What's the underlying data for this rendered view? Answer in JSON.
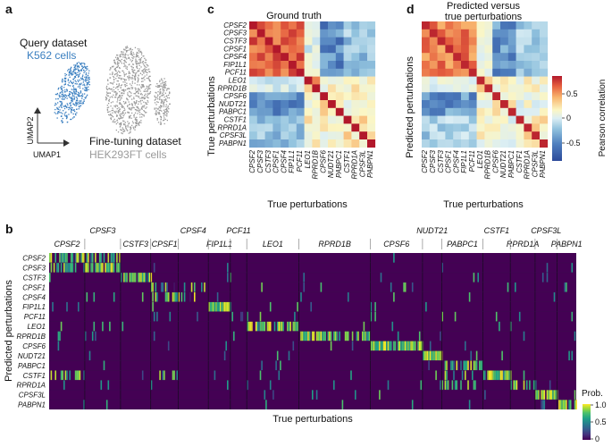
{
  "panels": {
    "a": {
      "label": "a",
      "query_title": "Query dataset",
      "query_subtitle": "K562 cells",
      "finetune_title": "Fine-tuning dataset",
      "finetune_subtitle": "HEK293FT cells",
      "axis_x": "UMAP1",
      "axis_y": "UMAP2"
    },
    "b": {
      "label": "b",
      "ylabel": "Predicted perturbations",
      "xlabel": "True perturbations",
      "colorbar_title": "Prob.",
      "colorbar_ticks": [
        "1.0",
        "0.5",
        "0"
      ]
    },
    "c": {
      "label": "c",
      "title": "Ground truth",
      "ylabel": "True perturbations",
      "xlabel": "True perturbations"
    },
    "d": {
      "label": "d",
      "title_line1": "Predicted versus",
      "title_line2": "true perturbations",
      "ylabel": "Predicted perturbations",
      "xlabel": "True perturbations",
      "colorbar_title": "Pearson correlation",
      "colorbar_ticks": [
        "0.5",
        "0",
        "-0.5"
      ]
    }
  },
  "genes": [
    "CPSF2",
    "CPSF3",
    "CSTF3",
    "CPSF1",
    "CPSF4",
    "FIP1L1",
    "PCF11",
    "LEO1",
    "RPRD1B",
    "CPSF6",
    "NUDT21",
    "PABPC1",
    "CSTF1",
    "RPRD1A",
    "CPSF3L",
    "PABPN1"
  ],
  "chart_data": [
    {
      "type": "heatmap",
      "id": "ground-truth",
      "title": "Ground truth",
      "xlabel": "True perturbations",
      "ylabel": "True perturbations",
      "colorbar_range": [
        -0.8,
        1.0
      ],
      "groups": [
        [
          0,
          6
        ],
        [
          7,
          8
        ],
        [
          9,
          11
        ],
        [
          12,
          15
        ]
      ],
      "block_correlation": [
        [
          0.75,
          0.0,
          -0.5,
          -0.25
        ],
        [
          0.0,
          0.5,
          0.2,
          0.2
        ],
        [
          -0.5,
          0.2,
          0.3,
          0.15
        ],
        [
          -0.25,
          0.2,
          0.15,
          0.3
        ]
      ],
      "diagonal": 1.0
    },
    {
      "type": "heatmap",
      "id": "predicted-vs-true",
      "title": "Predicted versus true perturbations",
      "xlabel": "True perturbations",
      "ylabel": "Predicted perturbations",
      "colorbar_range": [
        -0.8,
        1.0
      ],
      "groups": [
        [
          0,
          6
        ],
        [
          7,
          8
        ],
        [
          9,
          11
        ],
        [
          12,
          15
        ]
      ],
      "block_correlation": [
        [
          0.65,
          0.05,
          -0.45,
          -0.2
        ],
        [
          0.05,
          0.45,
          0.15,
          0.15
        ],
        [
          -0.45,
          0.15,
          0.25,
          0.1
        ],
        [
          -0.2,
          0.15,
          0.1,
          0.25
        ]
      ],
      "diagonal": 0.95
    },
    {
      "type": "heatmap",
      "id": "cell-probability",
      "xlabel": "True perturbations",
      "ylabel": "Predicted perturbations",
      "colorbar_range": [
        0,
        1
      ],
      "column_groups": [
        {
          "label": "CPSF2",
          "tier": "bottom",
          "width": 0.065
        },
        {
          "label": "CPSF3",
          "tier": "top",
          "width": 0.065
        },
        {
          "label": "CSTF3",
          "tier": "bottom",
          "width": 0.055
        },
        {
          "label": "CPSF1",
          "tier": "bottom",
          "width": 0.05
        },
        {
          "label": "CPSF4",
          "tier": "top",
          "width": 0.055
        },
        {
          "label": "FIP1L1",
          "tier": "bottom",
          "width": 0.04
        },
        {
          "label": "PCF11",
          "tier": "top",
          "width": 0.03
        },
        {
          "label": "LEO1",
          "tier": "bottom",
          "width": 0.095
        },
        {
          "label": "RPRD1B",
          "tier": "bottom",
          "width": 0.13
        },
        {
          "label": "CPSF6",
          "tier": "bottom",
          "width": 0.095
        },
        {
          "label": "NUDT21",
          "tier": "top",
          "width": 0.035
        },
        {
          "label": "PABPC1",
          "tier": "bottom",
          "width": 0.075
        },
        {
          "label": "CSTF1",
          "tier": "top",
          "width": 0.05
        },
        {
          "label": "RPRD1A",
          "tier": "bottom",
          "width": 0.045
        },
        {
          "label": "CPSF3L",
          "tier": "top",
          "width": 0.04
        },
        {
          "label": "PABPN1",
          "tier": "bottom",
          "width": 0.035
        }
      ],
      "on_target_prob": [
        0.6,
        0.7,
        0.85,
        0.15,
        0.5,
        0.9,
        0.1,
        0.7,
        0.6,
        0.95,
        0.9,
        0.45,
        0.75,
        0.55,
        0.85,
        0.8
      ],
      "off_target": [
        {
          "row": 1,
          "col": 0,
          "prob": 0.55
        },
        {
          "row": 0,
          "col": 1,
          "prob": 0.4
        },
        {
          "row": 12,
          "col": 0,
          "prob": 0.35
        },
        {
          "row": 12,
          "col": 3,
          "prob": 0.3
        },
        {
          "row": 4,
          "col": 3,
          "prob": 0.45
        },
        {
          "row": 12,
          "col": 11,
          "prob": 0.4
        },
        {
          "row": 13,
          "col": 11,
          "prob": 0.3
        },
        {
          "row": 3,
          "col": 4,
          "prob": 0.3
        }
      ]
    }
  ],
  "palette": {
    "viridis": [
      "#440154",
      "#46327e",
      "#365c8d",
      "#277f8e",
      "#1fa187",
      "#4ac16d",
      "#a0da39",
      "#fde725"
    ],
    "rdbu": [
      "#2c4a9a",
      "#4f7fbe",
      "#92c3de",
      "#dbeef4",
      "#fbf6c4",
      "#f8b46d",
      "#e6603f",
      "#b2182b"
    ],
    "cluster_query": "#3a7fc0",
    "cluster_finetune": "#9a9a9a"
  }
}
